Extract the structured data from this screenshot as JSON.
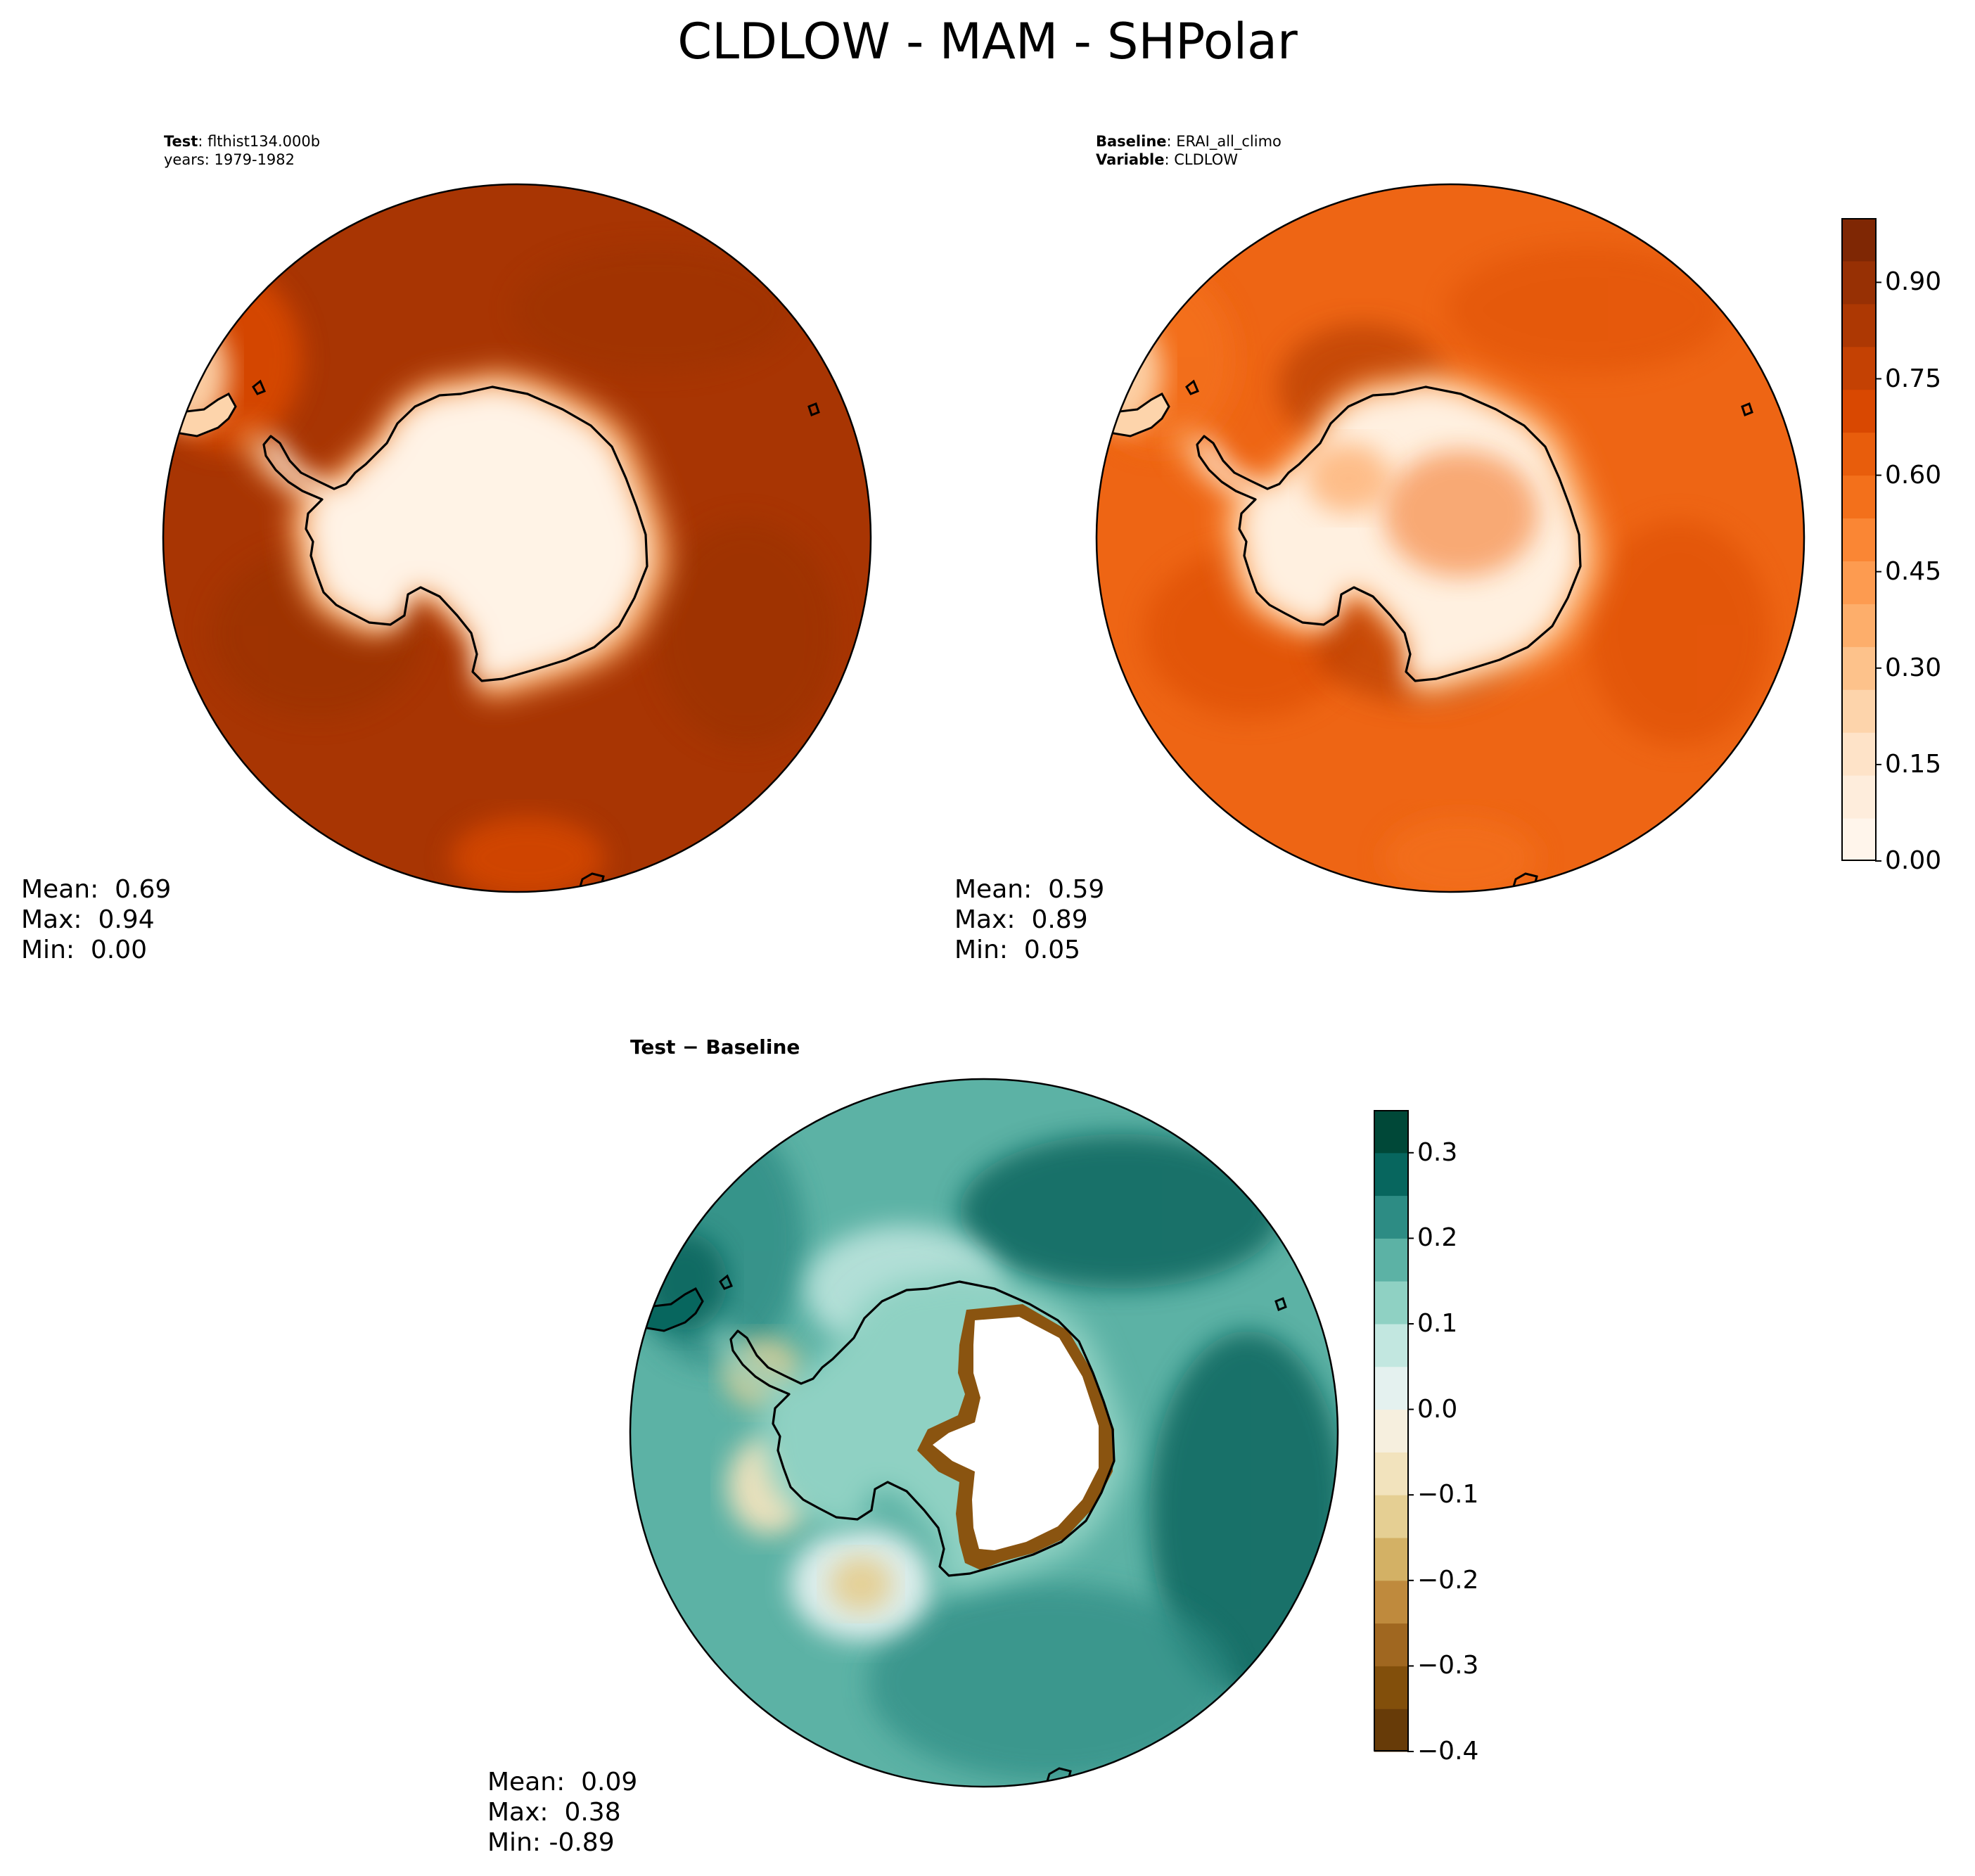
{
  "figure": {
    "title": "CLDLOW - MAM - SHPolar"
  },
  "panels": [
    {
      "id": "test",
      "label_1_key": "Test",
      "label_1_value": ": flthist134.000b",
      "label_2_key": "",
      "label_2_value": "years: 1979-1982",
      "stats": {
        "mean_label": "Mean:",
        "mean": "0.69",
        "max_label": "Max:",
        "max": "0.94",
        "min_label": "Min:",
        "min": "0.00"
      },
      "palette": "orange",
      "base_color": "#a83503",
      "ice_color": "#fff3e6"
    },
    {
      "id": "baseline",
      "label_1_key": "Baseline",
      "label_1_value": ": ERAI_all_climo",
      "label_2_key": "Variable",
      "label_2_value": ": CLDLOW",
      "stats": {
        "mean_label": "Mean:",
        "mean": "0.59",
        "max_label": "Max:",
        "max": "0.89",
        "min_label": "Min:",
        "min": "0.05"
      },
      "palette": "orange",
      "base_color": "#ee6514",
      "ice_color": "#fff0e0"
    },
    {
      "id": "difference",
      "label_1_key": "Test − Baseline",
      "label_1_value": "",
      "label_2_key": "",
      "label_2_value": "",
      "stats": {
        "mean_label": "Mean:",
        "mean": "0.09",
        "max_label": "Max:",
        "max": "0.38",
        "min_label": "Min:",
        "min": "-0.89"
      },
      "palette": "diverging",
      "base_color": "#5cb2a5",
      "ice_color": "#ffffff"
    }
  ],
  "colorbars": {
    "main": {
      "ticks": [
        "0.90",
        "0.75",
        "0.60",
        "0.45",
        "0.30",
        "0.15",
        "0.00"
      ],
      "tick_values": [
        0.9,
        0.75,
        0.6,
        0.45,
        0.3,
        0.15,
        0.0
      ],
      "range": [
        0.0,
        1.0
      ],
      "colors": [
        "#fff5eb",
        "#feeddc",
        "#fee3c8",
        "#fdd4ab",
        "#fdc28b",
        "#fdae6b",
        "#fd9b50",
        "#fa8634",
        "#f3701b",
        "#e85d0c",
        "#d94801",
        "#c44103",
        "#ad3803",
        "#973004",
        "#7f2704"
      ]
    },
    "diff": {
      "ticks": [
        "0.3",
        "0.2",
        "0.1",
        "0.0",
        "−0.1",
        "−0.2",
        "−0.3",
        "−0.4"
      ],
      "tick_values": [
        0.3,
        0.2,
        0.1,
        0.0,
        -0.1,
        -0.2,
        -0.3,
        -0.4
      ],
      "range": [
        -0.4,
        0.35
      ],
      "colors": [
        "#673b08",
        "#824f0b",
        "#a06720",
        "#bf8a3d",
        "#d3b165",
        "#e5cf93",
        "#f2e3bd",
        "#f6efde",
        "#e4f1ef",
        "#c2e7e0",
        "#8fd1c3",
        "#5cb2a5",
        "#2d8c84",
        "#07665e",
        "#004838"
      ]
    }
  }
}
